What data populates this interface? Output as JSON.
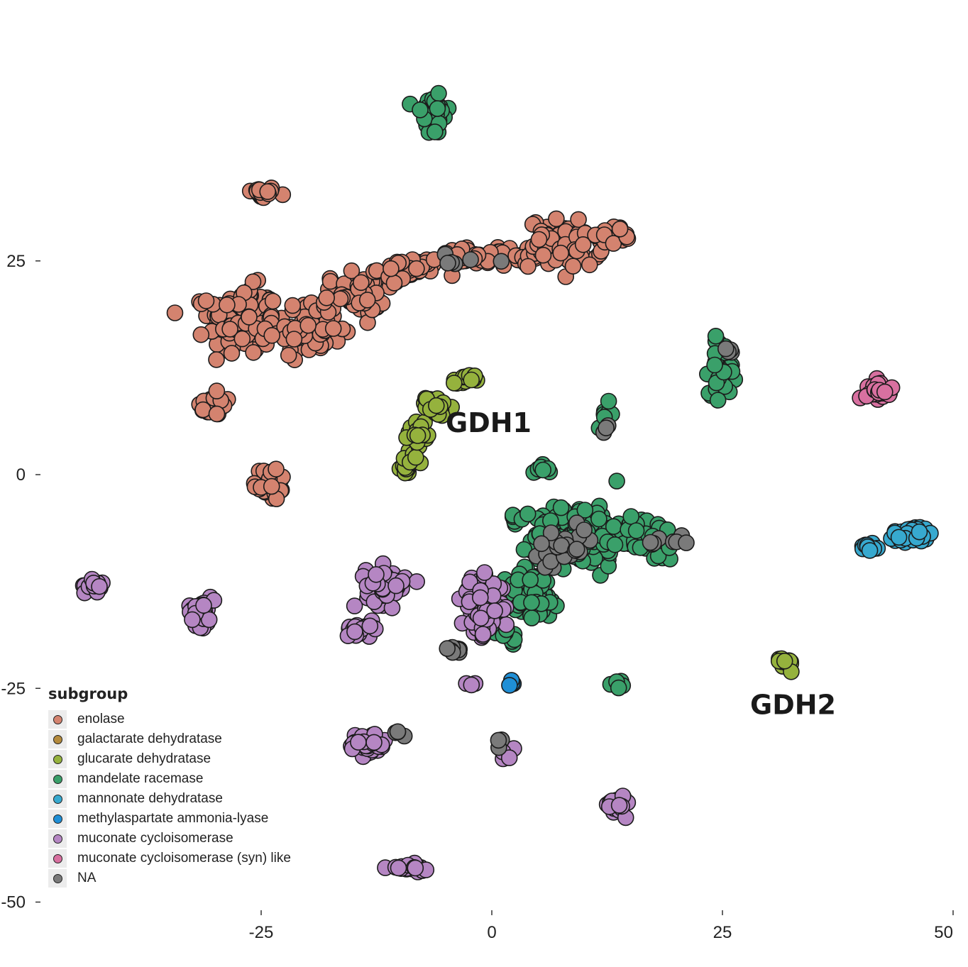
{
  "chart_data": {
    "type": "scatter",
    "title": "",
    "xlabel": "",
    "ylabel": "",
    "xlim": [
      -50,
      50
    ],
    "ylim": [
      -50,
      50
    ],
    "x_ticks": [
      "-25",
      "0",
      "25",
      "50"
    ],
    "y_ticks": [
      "25",
      "0",
      "-25",
      "-50"
    ],
    "x_tick_values": [
      -25,
      0,
      25,
      50
    ],
    "y_tick_values": [
      25,
      0,
      -25,
      -50
    ],
    "grid": false,
    "legend": {
      "title": "subgroup",
      "position": "bottom-left",
      "entries": [
        {
          "label": "enolase",
          "color": "#d4836f"
        },
        {
          "label": "galactarate dehydratase",
          "color": "#b48a3c"
        },
        {
          "label": "glucarate dehydratase",
          "color": "#95b23d"
        },
        {
          "label": "mandelate racemase",
          "color": "#3aa06a"
        },
        {
          "label": "mannonate dehydratase",
          "color": "#37a9cf"
        },
        {
          "label": "methylaspartate ammonia-lyase",
          "color": "#1f8fd6"
        },
        {
          "label": "muconate cycloisomerase",
          "color": "#b586c3"
        },
        {
          "label": "muconate cycloisomerase (syn) like",
          "color": "#d870a0"
        },
        {
          "label": "NA",
          "color": "#7a7a7a"
        }
      ]
    },
    "annotations": [
      {
        "text": "GDH1",
        "x": -5,
        "y": 5
      },
      {
        "text": "GDH2",
        "x": 28,
        "y": -28
      }
    ],
    "series": [
      {
        "name": "enolase",
        "clusters": [
          {
            "x": -25,
            "y": 33,
            "sx": 1.2,
            "sy": 0.5,
            "n": 22
          },
          {
            "x": -30,
            "y": 8,
            "sx": 1.3,
            "sy": 0.8,
            "n": 26
          },
          {
            "x": -24,
            "y": -1,
            "sx": 1.3,
            "sy": 1.5,
            "n": 36
          },
          {
            "x": -27,
            "y": 18,
            "sx": 2.6,
            "sy": 2.8,
            "n": 170
          },
          {
            "x": -20,
            "y": 17,
            "sx": 2.6,
            "sy": 2.2,
            "n": 80
          },
          {
            "x": -15,
            "y": 21,
            "sx": 2.4,
            "sy": 1.6,
            "n": 60
          },
          {
            "x": -9,
            "y": 24,
            "sx": 2.4,
            "sy": 0.9,
            "n": 45
          },
          {
            "x": -2,
            "y": 25.5,
            "sx": 2.6,
            "sy": 0.7,
            "n": 35
          },
          {
            "x": 4,
            "y": 25.5,
            "sx": 1.8,
            "sy": 0.7,
            "n": 18
          },
          {
            "x": 8,
            "y": 27,
            "sx": 2.8,
            "sy": 2.0,
            "n": 80
          },
          {
            "x": 13,
            "y": 28,
            "sx": 1.6,
            "sy": 0.7,
            "n": 20
          }
        ]
      },
      {
        "name": "galactarate dehydratase",
        "clusters": [
          {
            "x": 2.2,
            "y": -15.3,
            "sx": 0.3,
            "sy": 0.3,
            "n": 3
          }
        ]
      },
      {
        "name": "glucarate dehydratase",
        "clusters": [
          {
            "x": -9,
            "y": 1.5,
            "sx": 0.6,
            "sy": 1.2,
            "n": 20
          },
          {
            "x": -8,
            "y": 5,
            "sx": 0.7,
            "sy": 1.1,
            "n": 24
          },
          {
            "x": -6,
            "y": 8,
            "sx": 0.8,
            "sy": 0.8,
            "n": 20
          },
          {
            "x": -3,
            "y": 11,
            "sx": 0.8,
            "sy": 0.5,
            "n": 16
          },
          {
            "x": 31.5,
            "y": -22,
            "sx": 1.0,
            "sy": 0.5,
            "n": 16
          }
        ]
      },
      {
        "name": "mandelate racemase",
        "clusters": [
          {
            "x": -6.5,
            "y": 42,
            "sx": 1.4,
            "sy": 1.7,
            "n": 40
          },
          {
            "x": 25,
            "y": 12.5,
            "sx": 1.0,
            "sy": 2.2,
            "n": 45
          },
          {
            "x": 12.3,
            "y": 7,
            "sx": 0.6,
            "sy": 1.0,
            "n": 8
          },
          {
            "x": 5,
            "y": 0.5,
            "sx": 0.8,
            "sy": 0.4,
            "n": 8
          },
          {
            "x": 2.3,
            "y": -5.5,
            "sx": 0.6,
            "sy": 0.8,
            "n": 6
          },
          {
            "x": 9.5,
            "y": -7,
            "sx": 3.5,
            "sy": 2.6,
            "n": 160
          },
          {
            "x": 17,
            "y": -7.5,
            "sx": 2.3,
            "sy": 1.8,
            "n": 60
          },
          {
            "x": 4.5,
            "y": -14,
            "sx": 2.2,
            "sy": 2.2,
            "n": 70
          },
          {
            "x": 1.5,
            "y": -19,
            "sx": 1.0,
            "sy": 1.0,
            "n": 12
          },
          {
            "x": 14,
            "y": -24.5,
            "sx": 0.6,
            "sy": 0.3,
            "n": 6
          }
        ]
      },
      {
        "name": "mannonate dehydratase",
        "clusters": [
          {
            "x": 45.5,
            "y": -7,
            "sx": 1.8,
            "sy": 0.7,
            "n": 45
          },
          {
            "x": 41,
            "y": -8.3,
            "sx": 0.7,
            "sy": 0.4,
            "n": 10
          }
        ]
      },
      {
        "name": "methylaspartate ammonia-lyase",
        "clusters": [
          {
            "x": 2.2,
            "y": -24.5,
            "sx": 0.2,
            "sy": 0.4,
            "n": 4
          }
        ]
      },
      {
        "name": "muconate cycloisomerase",
        "clusters": [
          {
            "x": -43,
            "y": -13,
            "sx": 0.8,
            "sy": 0.5,
            "n": 18
          },
          {
            "x": -31.5,
            "y": -16,
            "sx": 1.0,
            "sy": 1.2,
            "n": 40
          },
          {
            "x": -11.5,
            "y": -13,
            "sx": 1.5,
            "sy": 1.6,
            "n": 55
          },
          {
            "x": -14,
            "y": -18,
            "sx": 1.3,
            "sy": 0.5,
            "n": 28
          },
          {
            "x": -1,
            "y": -15.5,
            "sx": 1.6,
            "sy": 2.3,
            "n": 90
          },
          {
            "x": -13.5,
            "y": -31.5,
            "sx": 1.5,
            "sy": 0.9,
            "n": 40
          },
          {
            "x": 1.8,
            "y": -32.5,
            "sx": 0.6,
            "sy": 0.6,
            "n": 10
          },
          {
            "x": 13.5,
            "y": -38.5,
            "sx": 0.7,
            "sy": 0.8,
            "n": 28
          },
          {
            "x": -9,
            "y": -46,
            "sx": 1.5,
            "sy": 0.3,
            "n": 25
          },
          {
            "x": -2.3,
            "y": -24.5,
            "sx": 0.3,
            "sy": 0.3,
            "n": 3
          }
        ]
      },
      {
        "name": "muconate cycloisomerase (syn) like",
        "clusters": [
          {
            "x": 42,
            "y": 10,
            "sx": 1.0,
            "sy": 0.8,
            "n": 28
          }
        ]
      },
      {
        "name": "NA",
        "clusters": [
          {
            "x": -3,
            "y": 25,
            "sx": 2.0,
            "sy": 0.8,
            "n": 6
          },
          {
            "x": 25.5,
            "y": 14.5,
            "sx": 0.5,
            "sy": 0.5,
            "n": 4
          },
          {
            "x": 12,
            "y": 5,
            "sx": 0.5,
            "sy": 0.8,
            "n": 3
          },
          {
            "x": 8,
            "y": -9,
            "sx": 3.0,
            "sy": 2.0,
            "n": 25
          },
          {
            "x": 19,
            "y": -8,
            "sx": 1.5,
            "sy": 0.5,
            "n": 8
          },
          {
            "x": -4,
            "y": -20.5,
            "sx": 0.8,
            "sy": 0.3,
            "n": 10
          },
          {
            "x": -10,
            "y": -30,
            "sx": 0.5,
            "sy": 0.5,
            "n": 4
          },
          {
            "x": 1,
            "y": -31,
            "sx": 0.3,
            "sy": 0.5,
            "n": 3
          }
        ]
      }
    ]
  }
}
